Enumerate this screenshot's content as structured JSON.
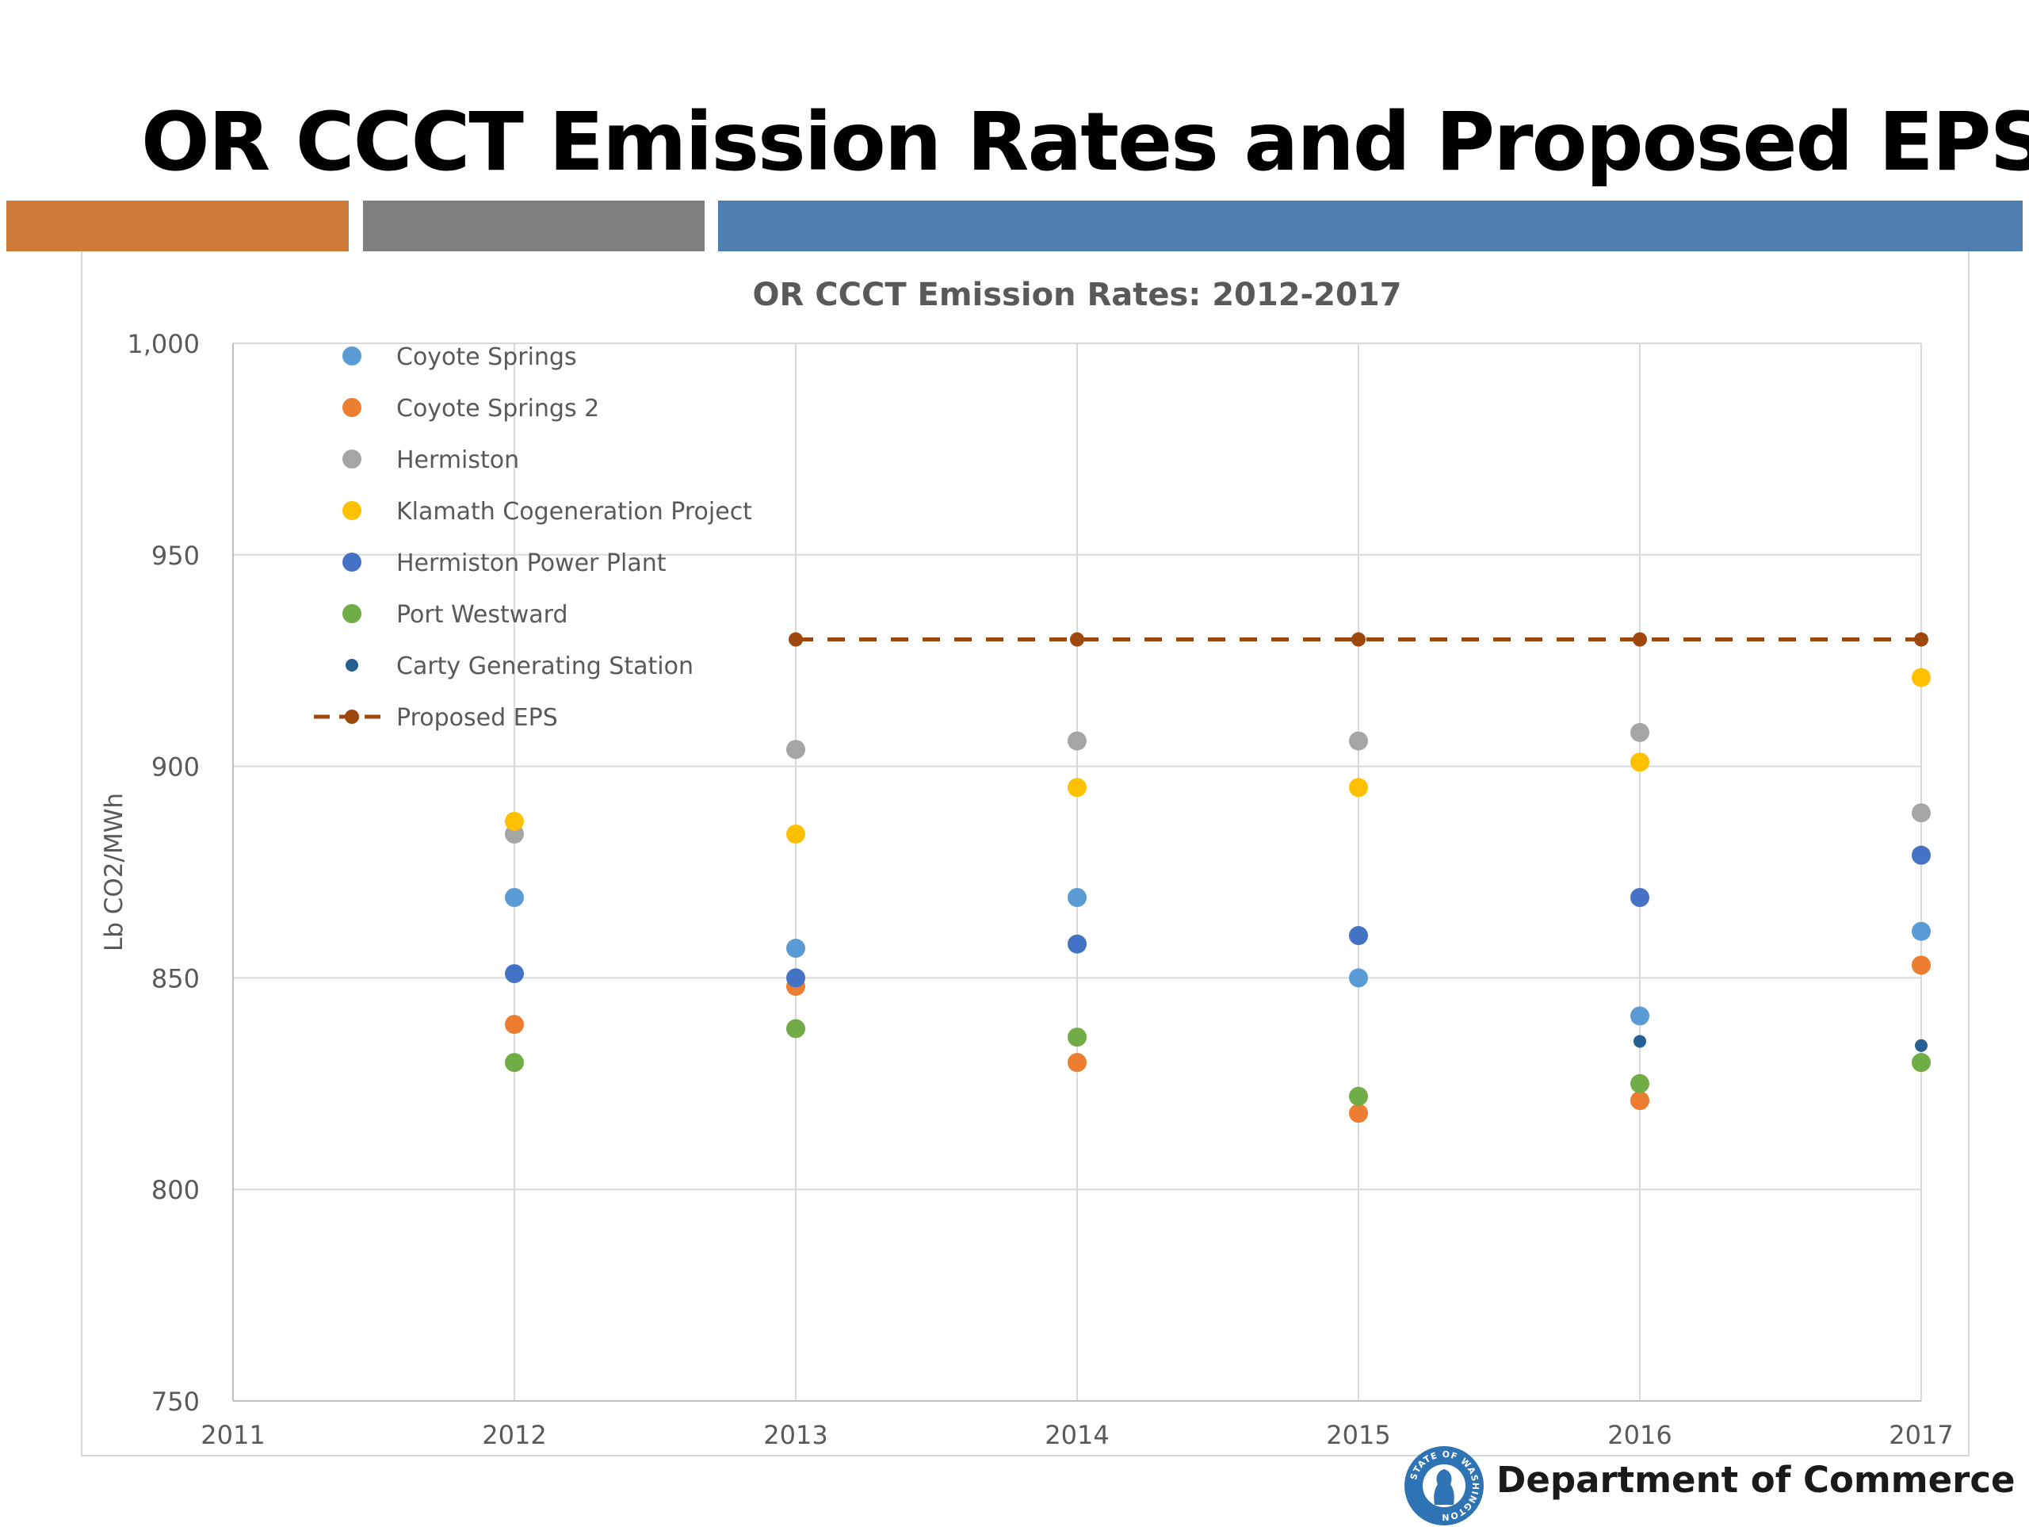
{
  "slide": {
    "title": "OR CCCT Emission Rates and Proposed EPS",
    "bands": [
      {
        "name": "orange-band",
        "color": "#CE7A38"
      },
      {
        "name": "gray-band",
        "color": "#7F7F7F"
      },
      {
        "name": "blue-band",
        "color": "#4E7FB0"
      }
    ]
  },
  "footer": {
    "organization": "Department of Commerce",
    "seal_text": "STATE OF WASHINGTON",
    "seal_color": "#2E74B5"
  },
  "chart_data": {
    "type": "scatter",
    "title": "OR CCCT Emission Rates: 2012-2017",
    "xlabel": "",
    "ylabel": "Lb CO2/MWh",
    "xlim": [
      2011,
      2017
    ],
    "ylim": [
      750,
      1000
    ],
    "x_ticks": [
      "2011",
      "2012",
      "2013",
      "2014",
      "2015",
      "2016",
      "2017"
    ],
    "y_ticks": [
      {
        "value": 750,
        "label": "750"
      },
      {
        "value": 800,
        "label": "800"
      },
      {
        "value": 850,
        "label": "850"
      },
      {
        "value": 900,
        "label": "900"
      },
      {
        "value": 950,
        "label": "950"
      },
      {
        "value": 1000,
        "label": "1,000"
      }
    ],
    "grid": true,
    "legend_position": "top-left",
    "x": [
      2012,
      2013,
      2014,
      2015,
      2016,
      2017
    ],
    "series": [
      {
        "name": "Coyote Springs",
        "color": "#5B9BD5",
        "marker": "dot",
        "values": [
          869,
          857,
          869,
          850,
          841,
          861
        ]
      },
      {
        "name": "Coyote Springs 2",
        "color": "#ED7D31",
        "marker": "dot",
        "values": [
          839,
          848,
          830,
          818,
          821,
          853
        ]
      },
      {
        "name": "Hermiston",
        "color": "#A5A5A5",
        "marker": "dot",
        "values": [
          884,
          904,
          906,
          906,
          908,
          889
        ]
      },
      {
        "name": "Klamath Cogeneration Project",
        "color": "#FFC000",
        "marker": "dot",
        "values": [
          887,
          884,
          895,
          895,
          901,
          921
        ]
      },
      {
        "name": "Hermiston Power Plant",
        "color": "#4472C4",
        "marker": "dot",
        "values": [
          851,
          850,
          858,
          860,
          869,
          879
        ]
      },
      {
        "name": "Port Westward",
        "color": "#70AD47",
        "marker": "dot",
        "values": [
          830,
          838,
          836,
          822,
          825,
          830
        ]
      },
      {
        "name": "Carty Generating Station",
        "color": "#255E91",
        "marker": "small-dot",
        "values": [
          null,
          null,
          null,
          null,
          835,
          834
        ]
      },
      {
        "name": "Proposed EPS",
        "color": "#9E480E",
        "marker": "dashed-line",
        "values": [
          null,
          930,
          930,
          930,
          930,
          930
        ]
      }
    ]
  }
}
